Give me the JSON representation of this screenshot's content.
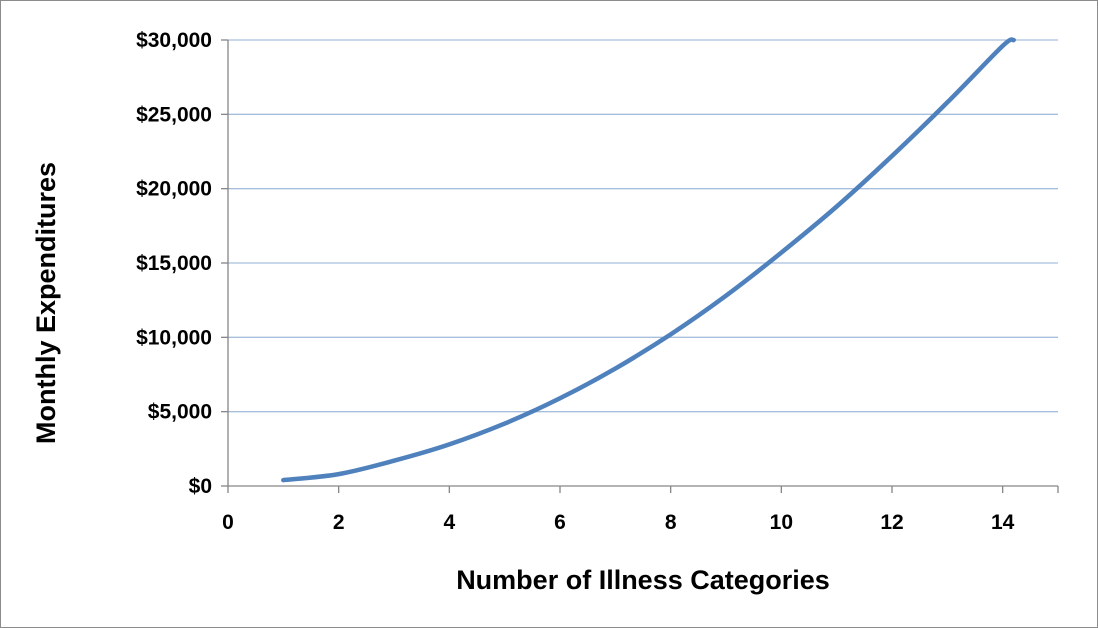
{
  "chart_data": {
    "type": "line",
    "xlabel": "Number of Illness Categories",
    "ylabel": "Monthly Expenditures",
    "xlim": [
      0,
      15
    ],
    "ylim": [
      0,
      30000
    ],
    "x_ticks": [
      "0",
      "2",
      "4",
      "6",
      "8",
      "10",
      "12",
      "14"
    ],
    "y_ticks": [
      "$0",
      "$5,000",
      "$10,000",
      "$15,000",
      "$20,000",
      "$25,000",
      "$30,000"
    ],
    "grid": "horizontal",
    "legend": "none",
    "series": [
      {
        "x": [
          1,
          2,
          3,
          4,
          5,
          6,
          7,
          8,
          9,
          10,
          11,
          12,
          13,
          14,
          14.2
        ],
        "values": [
          400,
          800,
          1700,
          2800,
          4200,
          5900,
          7900,
          10200,
          12800,
          15700,
          18800,
          22200,
          25800,
          29600,
          30000
        ]
      }
    ],
    "colors": {
      "line": "#4f81bd",
      "grid": "#a6bfdc",
      "axis": "#868686"
    }
  }
}
